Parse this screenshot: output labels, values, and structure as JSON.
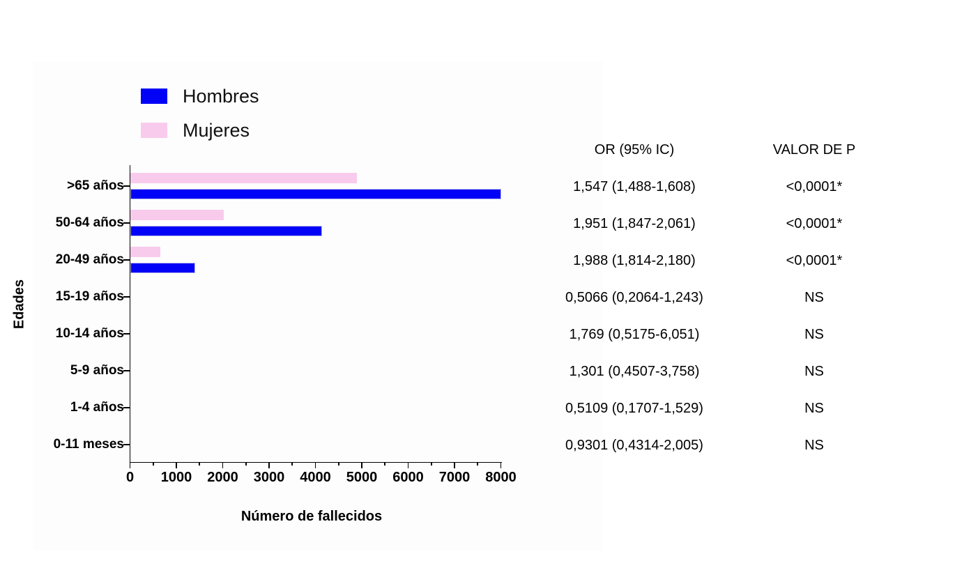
{
  "chart_data": {
    "type": "bar",
    "orientation": "horizontal",
    "title": "",
    "xlabel": "Número de fallecidos",
    "ylabel": "Edades",
    "xlim": [
      0,
      8000
    ],
    "x_major_tick_step": 1000,
    "x_minor_tick_step": 500,
    "x_tick_labels": [
      "0",
      "1000",
      "2000",
      "3000",
      "4000",
      "5000",
      "6000",
      "7000",
      "8000"
    ],
    "categories": [
      ">65 años",
      "50-64 años",
      "20-49 años",
      "15-19 años",
      "10-14 años",
      "5-9 años",
      "1-4 años",
      "0-11 meses"
    ],
    "series": [
      {
        "name": "Hombres",
        "color": "#0202f6",
        "values": [
          8000,
          4140,
          1400,
          0,
          0,
          0,
          0,
          0
        ]
      },
      {
        "name": "Mujeres",
        "color": "#f8cbec",
        "values": [
          4900,
          2020,
          660,
          0,
          0,
          0,
          0,
          0
        ]
      }
    ],
    "grid": false,
    "legend_position": "top-left"
  },
  "legend": {
    "items": [
      {
        "label": "Hombres",
        "color": "#0202f6"
      },
      {
        "label": "Mujeres",
        "color": "#f8cbec"
      }
    ]
  },
  "stats_table": {
    "columns": [
      "OR (95% IC)",
      "VALOR DE P"
    ],
    "rows": [
      {
        "or": "1,547 (1,488-1,608)",
        "p": "<0,0001*"
      },
      {
        "or": "1,951 (1,847-2,061)",
        "p": "<0,0001*"
      },
      {
        "or": "1,988 (1,814-2,180)",
        "p": "<0,0001*"
      },
      {
        "or": "0,5066 (0,2064-1,243)",
        "p": "NS"
      },
      {
        "or": "1,769 (0,5175-6,051)",
        "p": "NS"
      },
      {
        "or": "1,301 (0,4507-3,758)",
        "p": "NS"
      },
      {
        "or": "0,5109 (0,1707-1,529)",
        "p": "NS"
      },
      {
        "or": "0,9301 (0,4314-2,005)",
        "p": "NS"
      }
    ]
  },
  "colors": {
    "hombres": "#0202f6",
    "mujeres": "#f8cbec",
    "axis": "#000000",
    "text": "#000000",
    "background": "#ffffff"
  }
}
